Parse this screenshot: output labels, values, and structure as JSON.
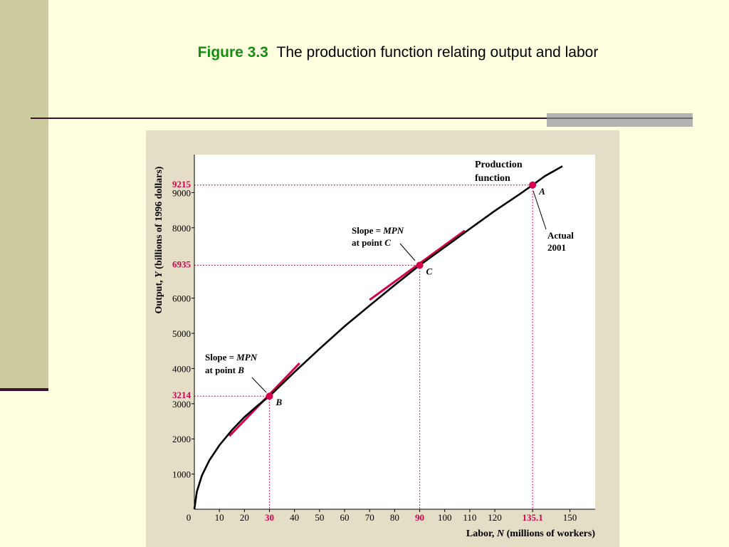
{
  "slide": {
    "figure_label": "Figure 3.3",
    "figure_title": "The production function relating output and labor"
  },
  "colors": {
    "background": "#FFFFE0",
    "side_band": "#CCCC9E",
    "rule": "#3B1330",
    "figure_label": "#119011",
    "figure_panel": "#E3DEC5",
    "highlight": "#D6004F"
  },
  "chart_data": {
    "type": "line",
    "xlabel": "Labor, N (millions of workers)",
    "ylabel": "Output, Y (billions of 1996 dollars)",
    "xlim": [
      0,
      160
    ],
    "ylim": [
      0,
      10000
    ],
    "x_ticks": [
      "0",
      "10",
      "20",
      "30",
      "40",
      "50",
      "60",
      "70",
      "80",
      "90",
      "100",
      "110",
      "120",
      "135.1",
      "150"
    ],
    "x_tick_values": [
      0,
      10,
      20,
      30,
      40,
      50,
      60,
      70,
      80,
      90,
      100,
      110,
      120,
      135.1,
      150
    ],
    "x_ticks_highlighted": [
      "30",
      "90",
      "135.1"
    ],
    "y_ticks": [
      "1000",
      "2000",
      "3000",
      "4000",
      "5000",
      "6000",
      "8000",
      "9000"
    ],
    "y_tick_values": [
      1000,
      2000,
      3000,
      4000,
      5000,
      6000,
      8000,
      9000
    ],
    "y_ticks_highlighted": [
      "3214",
      "6935",
      "9215"
    ],
    "y_tick_highlighted_values": [
      3214,
      6935,
      9215
    ],
    "series": [
      {
        "x": [
          0,
          1,
          3,
          6,
          10,
          15,
          20,
          25,
          30,
          40,
          50,
          60,
          70,
          80,
          90,
          100,
          110,
          120,
          130,
          135.1,
          140,
          147
        ],
        "y": [
          0,
          500,
          960,
          1390,
          1820,
          2250,
          2620,
          2930,
          3214,
          3900,
          4560,
          5200,
          5790,
          6370,
          6935,
          7450,
          7970,
          8480,
          8960,
          9215,
          9470,
          9750
        ]
      }
    ],
    "points": [
      {
        "label": "A",
        "x": 135.1,
        "y": 9215
      },
      {
        "label": "B",
        "x": 30,
        "y": 3214
      },
      {
        "label": "C",
        "x": 90,
        "y": 6935
      }
    ],
    "tangents": [
      {
        "at": "B",
        "x": [
          14,
          42
        ],
        "y": [
          2080,
          4150
        ]
      },
      {
        "at": "C",
        "x": [
          70,
          108
        ],
        "y": [
          5950,
          7920
        ]
      }
    ],
    "annotations": {
      "curve_label_1": "Production",
      "curve_label_2": "function",
      "actual_1": "Actual",
      "actual_2": "2001",
      "slope_c_1": "Slope = MPN",
      "slope_c_2": "at point C",
      "slope_b_1": "Slope = MPN",
      "slope_b_2": "at point B"
    }
  }
}
